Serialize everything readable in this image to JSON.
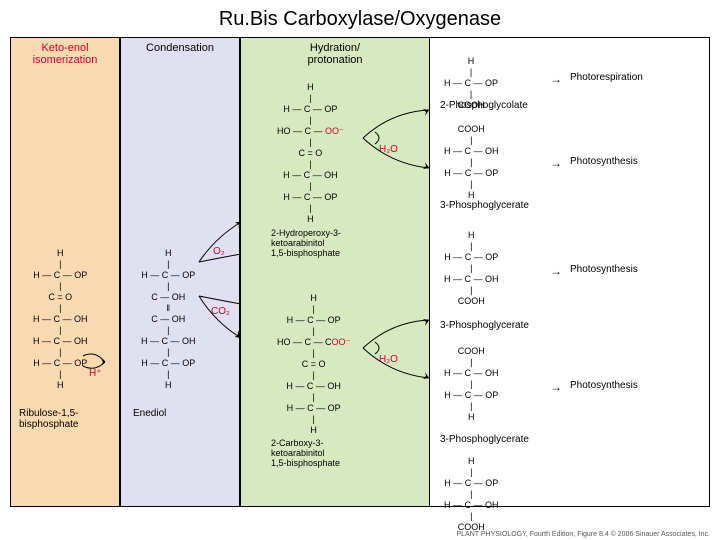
{
  "title": "Ru.Bis Carboxylase/Oxygenase",
  "panels": {
    "p1": {
      "header": "Keto-enol\nisomerization",
      "bg": "#f9d9b0",
      "header_color": "#cc0033"
    },
    "p2": {
      "header": "Condensation",
      "bg": "#e0e0f0",
      "header_color": "#000"
    },
    "p3": {
      "header": "Hydration/\nprotonation",
      "bg": "#d8e8c0",
      "header_color": "#000"
    },
    "p4": {
      "header": "",
      "bg": "#ffffff",
      "header_color": "#000"
    }
  },
  "mol_lines": {
    "rubp": [
      "H",
      "|",
      "H — C — OP",
      "|",
      "C = O",
      "|",
      "H — C — OH",
      "|",
      "H — C — OH",
      "|",
      "H — C — OP",
      "|",
      "H"
    ],
    "enediol": [
      "H",
      "|",
      "H — C — OP",
      "|",
      "C — OH",
      "‖",
      "C — OH",
      "|",
      "H — C — OH",
      "|",
      "H — C — OP",
      "|",
      "H"
    ],
    "hydroper": [
      "H",
      "|",
      "H — C — OP",
      "|",
      "HO — C — OO⁻",
      "|",
      "C = O",
      "|",
      "H — C — OH",
      "|",
      "H — C — OP",
      "|",
      "H"
    ],
    "carboxy": [
      "H",
      "|",
      "H — C — OP",
      "|",
      "HO — C — COO⁻",
      "|",
      "C = O",
      "|",
      "H — C — OH",
      "|",
      "H — C — OP",
      "|",
      "H"
    ],
    "phosglyc": [
      "H",
      "|",
      "H — C — OP",
      "|",
      "COOH"
    ],
    "pga_top": [
      "COOH",
      "|",
      "H — C — OH",
      "|",
      "H — C — OP",
      "|",
      "H"
    ],
    "pga_mid1": [
      "H",
      "|",
      "H — C — OP",
      "|",
      "H — C — OH",
      "|",
      "COOH"
    ],
    "pga_mid2": [
      "COOH",
      "|",
      "H — C — OH",
      "|",
      "H — C — OP",
      "|",
      "H"
    ],
    "pga_bot": [
      "H",
      "|",
      "H — C — OP",
      "|",
      "H — C — OH",
      "|",
      "COOH"
    ]
  },
  "captions": {
    "rubp": "Ribulose-1,5-\nbisphosphate",
    "enediol": "Enediol",
    "hydroper": "2-Hydroperoxy-3-\nketoarabinitol\n1,5-bisphosphate",
    "carboxy": "2-Carboxy-3-\nketoarabinitol\n1,5-bisphosphate",
    "phosglyc": "2-Phosphoglycolate",
    "pga": "3-Phosphoglycerate",
    "photoresp": "Photorespiration",
    "photosyn": "Photosynthesis"
  },
  "reagents": {
    "o2": "O₂",
    "co2": "CO₂",
    "h2o": "H₂O",
    "hplus": "H⁺"
  },
  "citation": "PLANT PHYSIOLOGY, Fourth Edition, Figure 8.4  © 2006 Sinauer Associates, Inc."
}
